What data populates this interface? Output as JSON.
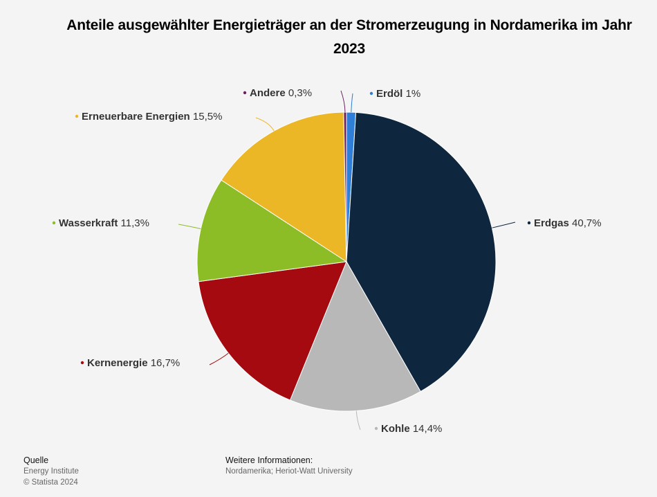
{
  "chart_data": {
    "type": "pie",
    "title": "Anteile ausgewählter Energieträger an der Stromerzeugung in Nordamerika im Jahr 2023",
    "slices": [
      {
        "name": "Erdöl",
        "value": 1,
        "label": "1%",
        "color": "#2f7ed8"
      },
      {
        "name": "Erdgas",
        "value": 40.7,
        "label": "40,7%",
        "color": "#0e263e"
      },
      {
        "name": "Kohle",
        "value": 14.4,
        "label": "14,4%",
        "color": "#b8b8b8"
      },
      {
        "name": "Kernenergie",
        "value": 16.7,
        "label": "16,7%",
        "color": "#a40a0f"
      },
      {
        "name": "Wasserkraft",
        "value": 11.3,
        "label": "11,3%",
        "color": "#8cbc26"
      },
      {
        "name": "Erneuerbare Energien",
        "value": 15.5,
        "label": "15,5%",
        "color": "#ebb726"
      },
      {
        "name": "Andere",
        "value": 0.3,
        "label": "0,3%",
        "color": "#6a1f5e"
      }
    ]
  },
  "footer": {
    "source_heading": "Quelle",
    "source_lines": [
      "Energy Institute",
      "© Statista 2024"
    ],
    "info_heading": "Weitere Informationen:",
    "info_text": "Nordamerika; Heriot-Watt University"
  }
}
